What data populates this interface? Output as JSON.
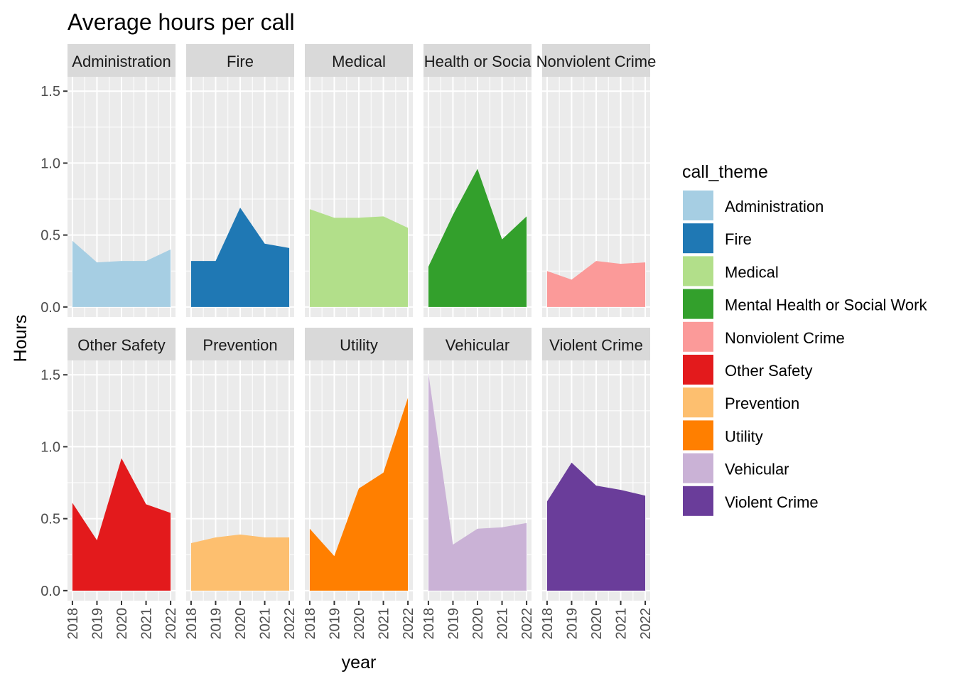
{
  "chart_data": {
    "type": "area",
    "title": "Average hours per call",
    "xlabel": "year",
    "ylabel": "Hours",
    "x": [
      2018,
      2019,
      2020,
      2021,
      2022
    ],
    "x_tick_labels": [
      "2018",
      "2019",
      "2020",
      "2021",
      "2022"
    ],
    "ylim": [
      -0.07,
      1.6
    ],
    "y_ticks": [
      0.0,
      0.5,
      1.0,
      1.5
    ],
    "y_tick_labels": [
      "0.0",
      "0.5",
      "1.0",
      "1.5"
    ],
    "grid": true,
    "facet_layout": "2 rows x 5 columns",
    "legend": {
      "title": "call_theme",
      "position": "right"
    },
    "series": [
      {
        "name": "Administration",
        "strip_label": "Administration",
        "color": "#A6CEE3",
        "values": [
          0.46,
          0.31,
          0.32,
          0.32,
          0.4
        ]
      },
      {
        "name": "Fire",
        "strip_label": "Fire",
        "color": "#1F78B4",
        "values": [
          0.32,
          0.32,
          0.69,
          0.44,
          0.41
        ]
      },
      {
        "name": "Medical",
        "strip_label": "Medical",
        "color": "#B2DF8A",
        "values": [
          0.68,
          0.62,
          0.62,
          0.63,
          0.55
        ]
      },
      {
        "name": "Mental Health or Social Work",
        "strip_label": "Health or Socia",
        "color": "#33A02C",
        "values": [
          0.28,
          0.64,
          0.96,
          0.47,
          0.63
        ]
      },
      {
        "name": "Nonviolent Crime",
        "strip_label": "Nonviolent Crime",
        "color": "#FB9A99",
        "values": [
          0.25,
          0.19,
          0.32,
          0.3,
          0.31
        ]
      },
      {
        "name": "Other Safety",
        "strip_label": "Other Safety",
        "color": "#E31A1C",
        "values": [
          0.61,
          0.35,
          0.92,
          0.6,
          0.54
        ]
      },
      {
        "name": "Prevention",
        "strip_label": "Prevention",
        "color": "#FDBF6F",
        "values": [
          0.33,
          0.37,
          0.39,
          0.37,
          0.37
        ]
      },
      {
        "name": "Utility",
        "strip_label": "Utility",
        "color": "#FF7F00",
        "values": [
          0.43,
          0.24,
          0.71,
          0.82,
          1.34
        ]
      },
      {
        "name": "Vehicular",
        "strip_label": "Vehicular",
        "color": "#CAB2D6",
        "values": [
          1.51,
          0.32,
          0.43,
          0.44,
          0.47
        ]
      },
      {
        "name": "Violent Crime",
        "strip_label": "Violent Crime",
        "color": "#6A3D9A",
        "values": [
          0.62,
          0.89,
          0.73,
          0.7,
          0.66
        ]
      }
    ]
  }
}
